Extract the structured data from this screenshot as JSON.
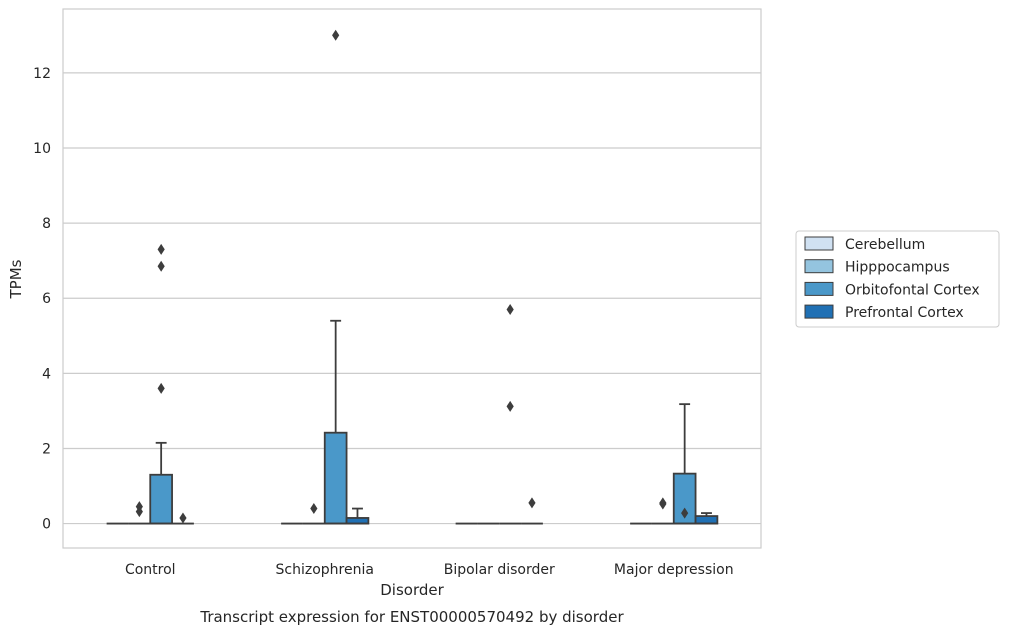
{
  "chart_data": {
    "type": "box",
    "caption": "Transcript expression for ENST00000570492 by disorder",
    "xlabel": "Disorder",
    "ylabel": "TPMs",
    "ylim": [
      -0.65,
      13.7
    ],
    "yticks": [
      0,
      2,
      4,
      6,
      8,
      10,
      12
    ],
    "grid": true,
    "legend_position": "right",
    "categories": [
      "Control",
      "Schizophrenia",
      "Bipolar disorder",
      "Major depression"
    ],
    "series": [
      {
        "name": "Cerebellum",
        "color": "#d0e1f2",
        "boxes": [
          {
            "min": 0,
            "q1": 0,
            "median": 0,
            "q3": 0,
            "max": 0,
            "outliers": []
          },
          {
            "min": 0,
            "q1": 0,
            "median": 0,
            "q3": 0,
            "max": 0,
            "outliers": []
          },
          {
            "min": 0,
            "q1": 0,
            "median": 0,
            "q3": 0,
            "max": 0,
            "outliers": []
          },
          {
            "min": 0,
            "q1": 0,
            "median": 0,
            "q3": 0,
            "max": 0,
            "outliers": []
          }
        ]
      },
      {
        "name": "Hipppocampus",
        "color": "#94c4df",
        "boxes": [
          {
            "min": 0,
            "q1": 0,
            "median": 0,
            "q3": 0,
            "max": 0,
            "outliers": [
              0.45,
              0.32
            ]
          },
          {
            "min": 0,
            "q1": 0,
            "median": 0,
            "q3": 0,
            "max": 0,
            "outliers": [
              0.4
            ]
          },
          {
            "min": 0,
            "q1": 0,
            "median": 0,
            "q3": 0,
            "max": 0,
            "outliers": []
          },
          {
            "min": 0,
            "q1": 0,
            "median": 0,
            "q3": 0,
            "max": 0,
            "outliers": [
              0.55,
              0.52
            ]
          }
        ]
      },
      {
        "name": "Orbitofontal Cortex",
        "color": "#4a98c9",
        "boxes": [
          {
            "min": 0,
            "q1": 0,
            "median": 0,
            "q3": 1.3,
            "max": 2.15,
            "outliers": [
              7.3,
              6.85,
              3.6
            ]
          },
          {
            "min": 0,
            "q1": 0,
            "median": 0,
            "q3": 2.42,
            "max": 5.4,
            "outliers": [
              13.0
            ]
          },
          {
            "min": 0,
            "q1": 0,
            "median": 0,
            "q3": 0,
            "max": 0,
            "outliers": [
              5.7,
              3.12
            ]
          },
          {
            "min": 0,
            "q1": 0,
            "median": 0,
            "q3": 1.33,
            "max": 3.18,
            "outliers": [
              0.28
            ]
          }
        ]
      },
      {
        "name": "Prefrontal Cortex",
        "color": "#2070b4",
        "boxes": [
          {
            "min": 0,
            "q1": 0,
            "median": 0,
            "q3": 0,
            "max": 0,
            "outliers": [
              0.15
            ]
          },
          {
            "min": 0,
            "q1": 0,
            "median": 0,
            "q3": 0.15,
            "max": 0.4,
            "outliers": []
          },
          {
            "min": 0,
            "q1": 0,
            "median": 0,
            "q3": 0,
            "max": 0,
            "outliers": [
              0.55
            ]
          },
          {
            "min": 0,
            "q1": 0,
            "median": 0,
            "q3": 0.2,
            "max": 0.28,
            "outliers": []
          }
        ]
      }
    ]
  }
}
